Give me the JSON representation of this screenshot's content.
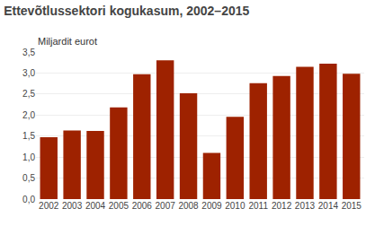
{
  "chart_data": {
    "type": "bar",
    "title": "Ettevõtlussektori kogukasum, 2002–2015",
    "ylabel": "Miljardit eurot",
    "categories": [
      "2002",
      "2003",
      "2004",
      "2005",
      "2006",
      "2007",
      "2008",
      "2009",
      "2010",
      "2011",
      "2012",
      "2013",
      "2014",
      "2015"
    ],
    "values": [
      1.47,
      1.63,
      1.62,
      2.18,
      2.97,
      3.3,
      2.52,
      1.1,
      1.96,
      2.76,
      2.93,
      3.15,
      3.22,
      2.98
    ],
    "color": "#9e2200",
    "ylim": [
      0,
      3.5
    ],
    "yticks": [
      {
        "value": 0.0,
        "label": "0,0"
      },
      {
        "value": 0.5,
        "label": "0,5"
      },
      {
        "value": 1.0,
        "label": "1,0"
      },
      {
        "value": 1.5,
        "label": "1,5"
      },
      {
        "value": 2.0,
        "label": "2,0"
      },
      {
        "value": 2.5,
        "label": "2,5"
      },
      {
        "value": 3.0,
        "label": "3,0"
      },
      {
        "value": 3.5,
        "label": "3,5"
      }
    ],
    "grid": true
  }
}
